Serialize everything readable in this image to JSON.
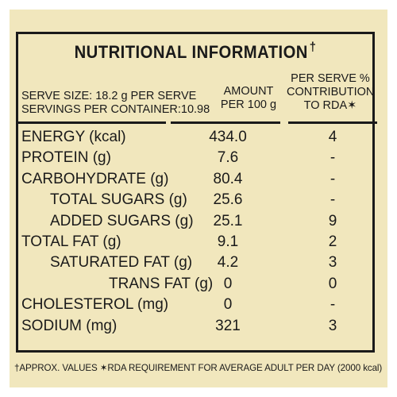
{
  "label": {
    "title": "NUTRITIONAL INFORMATION",
    "title_mark": "†",
    "serve_size": "SERVE SIZE: 18.2 g PER SERVE",
    "servings": "SERVINGS PER CONTAINER:10.98",
    "amount_header_1": "AMOUNT",
    "amount_header_2": "PER 100 g",
    "rda_header_1": "PER SERVE %",
    "rda_header_2": "CONTRIBUTION",
    "rda_header_3": "TO RDA✶",
    "rows": [
      {
        "name": "ENERGY (kcal)",
        "amount": "434.0",
        "rda": "4",
        "indent": 0
      },
      {
        "name": "PROTEIN (g)",
        "amount": "7.6",
        "rda": "-",
        "indent": 0
      },
      {
        "name": "CARBOHYDRATE (g)",
        "amount": "80.4",
        "rda": "-",
        "indent": 0
      },
      {
        "name": "TOTAL SUGARS (g)",
        "amount": "25.6",
        "rda": "-",
        "indent": 1
      },
      {
        "name": "ADDED SUGARS (g)",
        "amount": "25.1",
        "rda": "9",
        "indent": 1
      },
      {
        "name": "TOTAL FAT (g)",
        "amount": "9.1",
        "rda": "2",
        "indent": 0
      },
      {
        "name": "SATURATED FAT (g)",
        "amount": "4.2",
        "rda": "3",
        "indent": 1
      },
      {
        "name": "TRANS FAT (g)",
        "amount": "0",
        "rda": "0",
        "indent": 2
      },
      {
        "name": "CHOLESTEROL (mg)",
        "amount": "0",
        "rda": "-",
        "indent": 0
      },
      {
        "name": "SODIUM (mg)",
        "amount": "321",
        "rda": "3",
        "indent": 0
      }
    ],
    "footnote": "†APPROX. VALUES ✶RDA REQUIREMENT FOR AVERAGE ADULT PER DAY (2000 kcal)"
  }
}
